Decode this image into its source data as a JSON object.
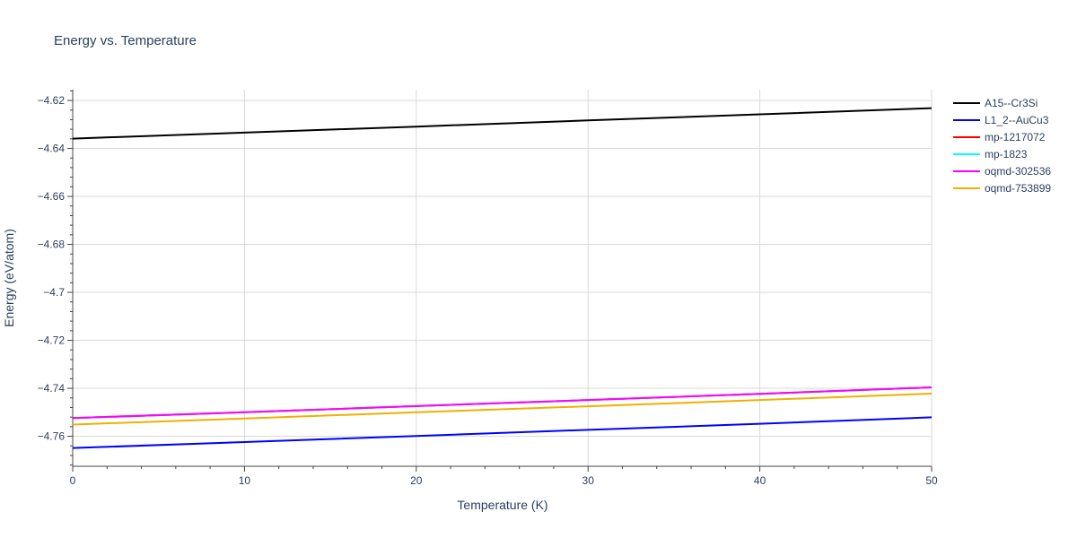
{
  "chart_data": {
    "type": "line",
    "title": "Energy vs. Temperature",
    "xlabel": "Temperature (K)",
    "ylabel": "Energy (eV/atom)",
    "xlim": [
      0,
      50
    ],
    "ylim": [
      -4.7725,
      -4.6155
    ],
    "x_ticks": [
      0,
      10,
      20,
      30,
      40,
      50
    ],
    "x_tick_labels": [
      "0",
      "10",
      "20",
      "30",
      "40",
      "50"
    ],
    "y_ticks": [
      -4.62,
      -4.64,
      -4.66,
      -4.68,
      -4.7,
      -4.72,
      -4.74,
      -4.76
    ],
    "y_tick_labels": [
      "−4.62",
      "−4.64",
      "−4.66",
      "−4.68",
      "−4.7",
      "−4.72",
      "−4.74",
      "−4.76"
    ],
    "grid": true,
    "legend_position": "right",
    "series": [
      {
        "name": "A15--Cr3Si",
        "color": "#000000",
        "x": [
          0,
          10,
          20,
          30,
          40,
          50
        ],
        "y": [
          -4.6359,
          -4.6334,
          -4.6309,
          -4.6283,
          -4.6258,
          -4.6232
        ]
      },
      {
        "name": "L1_2--AuCu3",
        "color": "#0000ff",
        "x": [
          0,
          10,
          20,
          30,
          40,
          50
        ],
        "y": [
          -4.7649,
          -4.7624,
          -4.7599,
          -4.7573,
          -4.7548,
          -4.7521
        ]
      },
      {
        "name": "mp-1217072",
        "color": "#ff0000",
        "x": [
          0,
          10,
          20,
          30,
          40,
          50
        ],
        "y": [
          -4.7524,
          -4.75,
          -4.7474,
          -4.7449,
          -4.7423,
          -4.7396
        ]
      },
      {
        "name": "mp-1823",
        "color": "#00ffff",
        "x": [
          0,
          10,
          20,
          30,
          40,
          50
        ],
        "y": [
          -4.7524,
          -4.75,
          -4.7474,
          -4.7449,
          -4.7423,
          -4.7396
        ]
      },
      {
        "name": "oqmd-302536",
        "color": "#ff00ff",
        "x": [
          0,
          10,
          20,
          30,
          40,
          50
        ],
        "y": [
          -4.7524,
          -4.75,
          -4.7474,
          -4.7449,
          -4.7423,
          -4.7396
        ]
      },
      {
        "name": "oqmd-753899",
        "color": "#f0b000",
        "x": [
          0,
          10,
          20,
          30,
          40,
          50
        ],
        "y": [
          -4.7551,
          -4.7526,
          -4.75,
          -4.7475,
          -4.7449,
          -4.7422
        ]
      }
    ]
  }
}
